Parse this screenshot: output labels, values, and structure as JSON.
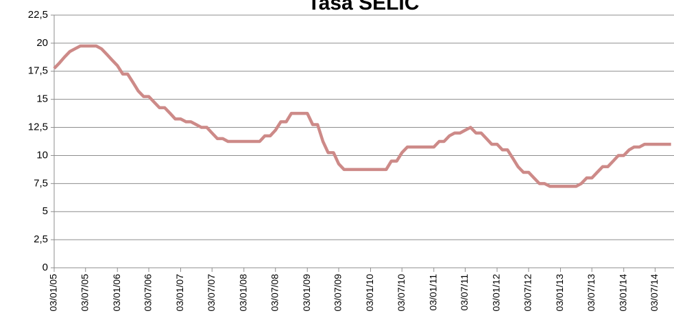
{
  "chart_data": {
    "type": "line",
    "title": "Tasa SELIC",
    "x": [
      "03/01/05",
      "03/02/05",
      "03/03/05",
      "03/04/05",
      "03/05/05",
      "03/06/05",
      "03/07/05",
      "03/08/05",
      "03/09/05",
      "03/10/05",
      "03/11/05",
      "03/12/05",
      "03/01/06",
      "03/02/06",
      "03/03/06",
      "03/04/06",
      "03/05/06",
      "03/06/06",
      "03/07/06",
      "03/08/06",
      "03/09/06",
      "03/10/06",
      "03/11/06",
      "03/12/06",
      "03/01/07",
      "03/02/07",
      "03/03/07",
      "03/04/07",
      "03/05/07",
      "03/06/07",
      "03/07/07",
      "03/08/07",
      "03/09/07",
      "03/10/07",
      "03/11/07",
      "03/12/07",
      "03/01/08",
      "03/02/08",
      "03/03/08",
      "03/04/08",
      "03/05/08",
      "03/06/08",
      "03/07/08",
      "03/08/08",
      "03/09/08",
      "03/10/08",
      "03/11/08",
      "03/12/08",
      "03/01/09",
      "03/02/09",
      "03/03/09",
      "03/04/09",
      "03/05/09",
      "03/06/09",
      "03/07/09",
      "03/08/09",
      "03/09/09",
      "03/10/09",
      "03/11/09",
      "03/12/09",
      "03/01/10",
      "03/02/10",
      "03/03/10",
      "03/04/10",
      "03/05/10",
      "03/06/10",
      "03/07/10",
      "03/08/10",
      "03/09/10",
      "03/10/10",
      "03/11/10",
      "03/12/10",
      "03/01/11",
      "03/02/11",
      "03/03/11",
      "03/04/11",
      "03/05/11",
      "03/06/11",
      "03/07/11",
      "03/08/11",
      "03/09/11",
      "03/10/11",
      "03/11/11",
      "03/12/11",
      "03/01/12",
      "03/02/12",
      "03/03/12",
      "03/04/12",
      "03/05/12",
      "03/06/12",
      "03/07/12",
      "03/08/12",
      "03/09/12",
      "03/10/12",
      "03/11/12",
      "03/12/12",
      "03/01/13",
      "03/02/13",
      "03/03/13",
      "03/04/13",
      "03/05/13",
      "03/06/13",
      "03/07/13",
      "03/08/13",
      "03/09/13",
      "03/10/13",
      "03/11/13",
      "03/12/13",
      "03/01/14",
      "03/02/14",
      "03/03/14",
      "03/04/14",
      "03/05/14",
      "03/06/14",
      "03/07/14",
      "03/08/14",
      "03/09/14",
      "03/10/14"
    ],
    "values": [
      17.75,
      18.25,
      18.75,
      19.25,
      19.5,
      19.75,
      19.75,
      19.75,
      19.75,
      19.5,
      19,
      18.5,
      18,
      17.25,
      17.25,
      16.5,
      15.75,
      15.25,
      15.25,
      14.75,
      14.25,
      14.25,
      13.75,
      13.25,
      13.25,
      13,
      13,
      12.75,
      12.5,
      12.5,
      12,
      11.5,
      11.5,
      11.25,
      11.25,
      11.25,
      11.25,
      11.25,
      11.25,
      11.25,
      11.75,
      11.75,
      12.25,
      13,
      13,
      13.75,
      13.75,
      13.75,
      13.75,
      12.75,
      12.75,
      11.25,
      10.25,
      10.25,
      9.25,
      8.75,
      8.75,
      8.75,
      8.75,
      8.75,
      8.75,
      8.75,
      8.75,
      8.75,
      9.5,
      9.5,
      10.25,
      10.75,
      10.75,
      10.75,
      10.75,
      10.75,
      10.75,
      11.25,
      11.25,
      11.75,
      12,
      12,
      12.25,
      12.5,
      12,
      12,
      11.5,
      11,
      11,
      10.5,
      10.5,
      9.75,
      9,
      8.5,
      8.5,
      8,
      7.5,
      7.5,
      7.25,
      7.25,
      7.25,
      7.25,
      7.25,
      7.25,
      7.5,
      8,
      8,
      8.5,
      9,
      9,
      9.5,
      10,
      10,
      10.5,
      10.75,
      10.75,
      11,
      11,
      11,
      11,
      11,
      11
    ],
    "color": "#cd8a88",
    "xlim": [
      "03/01/05",
      "20/10/14"
    ],
    "xticks": [
      "03/01/05",
      "03/07/05",
      "03/01/06",
      "03/07/06",
      "03/01/07",
      "03/07/07",
      "03/01/08",
      "03/07/08",
      "03/01/09",
      "03/07/09",
      "03/01/10",
      "03/07/10",
      "03/01/11",
      "03/07/11",
      "03/01/12",
      "03/07/12",
      "03/01/13",
      "03/07/13",
      "03/01/14",
      "03/07/14"
    ],
    "ylim": [
      0,
      22.5
    ],
    "yticks": [
      0,
      {
        "value": 2.5,
        "label": "2,5"
      },
      5,
      {
        "value": 7.5,
        "label": "7,5"
      },
      10,
      {
        "value": 12.5,
        "label": "12,5"
      },
      15,
      {
        "value": 17.5,
        "label": "17,5"
      },
      20,
      {
        "value": 22.5,
        "label": "22,5"
      }
    ],
    "grid": true
  }
}
